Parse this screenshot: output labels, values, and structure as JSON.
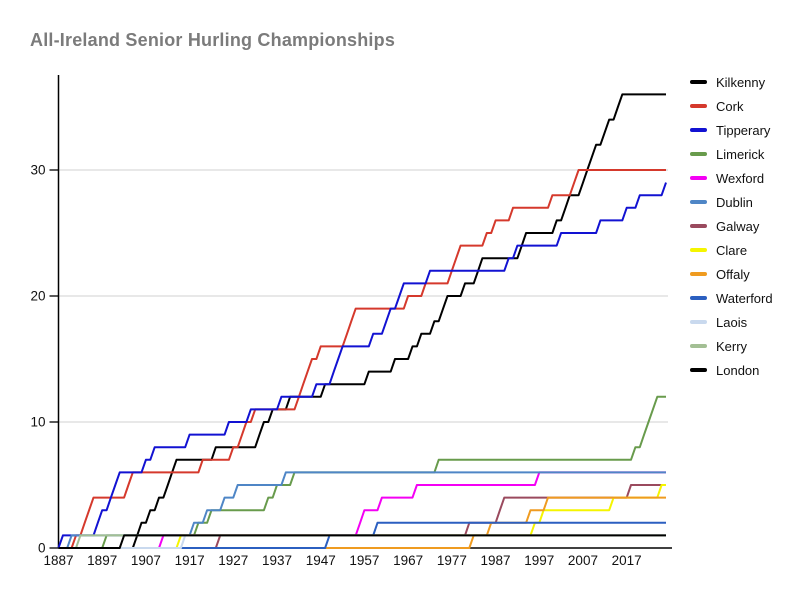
{
  "chart_data": {
    "type": "line",
    "title": "All-Ireland Senior Hurling Championships",
    "x_domain": [
      1887,
      2026
    ],
    "y_domain": [
      0,
      37.5
    ],
    "x_ticks": [
      1887,
      1897,
      1907,
      1917,
      1927,
      1937,
      1947,
      1957,
      1967,
      1977,
      1987,
      1997,
      2007,
      2017
    ],
    "y_ticks": [
      0,
      10,
      20,
      30
    ],
    "y_gridlines": [
      10,
      20,
      30
    ],
    "grid_color": "#d2d2d2",
    "axis_color": "#000000",
    "legend_position": "right",
    "series": [
      {
        "name": "Kilkenny",
        "color": "#000000",
        "total": 36,
        "win_years": [
          1904,
          1905,
          1907,
          1909,
          1911,
          1912,
          1913,
          1922,
          1932,
          1933,
          1935,
          1939,
          1947,
          1957,
          1963,
          1967,
          1969,
          1972,
          1974,
          1975,
          1979,
          1982,
          1983,
          1992,
          1993,
          2000,
          2002,
          2003,
          2006,
          2007,
          2008,
          2009,
          2011,
          2012,
          2014,
          2015
        ]
      },
      {
        "name": "Cork",
        "color": "#d5392c",
        "total": 30,
        "win_years": [
          1890,
          1892,
          1893,
          1894,
          1902,
          1903,
          1919,
          1926,
          1928,
          1929,
          1931,
          1941,
          1942,
          1943,
          1944,
          1946,
          1952,
          1953,
          1954,
          1966,
          1970,
          1976,
          1977,
          1978,
          1984,
          1986,
          1990,
          1999,
          2004,
          2005
        ]
      },
      {
        "name": "Tipperary",
        "color": "#1212d2",
        "total": 29,
        "win_years": [
          1887,
          1895,
          1896,
          1898,
          1899,
          1900,
          1906,
          1908,
          1916,
          1925,
          1930,
          1937,
          1945,
          1949,
          1950,
          1951,
          1958,
          1961,
          1962,
          1964,
          1965,
          1971,
          1989,
          1991,
          2001,
          2010,
          2016,
          2019,
          2025
        ]
      },
      {
        "name": "Limerick",
        "color": "#689b4c",
        "total": 12,
        "win_years": [
          1897,
          1918,
          1921,
          1934,
          1936,
          1940,
          1973,
          2018,
          2020,
          2021,
          2022,
          2023
        ]
      },
      {
        "name": "Wexford",
        "color": "#f400f4",
        "total": 6,
        "win_years": [
          1910,
          1955,
          1956,
          1960,
          1968,
          1996
        ]
      },
      {
        "name": "Dublin",
        "color": "#4f86c6",
        "total": 6,
        "win_years": [
          1889,
          1917,
          1920,
          1924,
          1927,
          1938
        ]
      },
      {
        "name": "Galway",
        "color": "#9a4a5e",
        "total": 5,
        "win_years": [
          1923,
          1980,
          1987,
          1988,
          2017
        ]
      },
      {
        "name": "Clare",
        "color": "#f5f500",
        "total": 5,
        "win_years": [
          1914,
          1995,
          1997,
          2013,
          2024
        ]
      },
      {
        "name": "Offaly",
        "color": "#ef9b20",
        "total": 4,
        "win_years": [
          1981,
          1985,
          1994,
          1998
        ]
      },
      {
        "name": "Waterford",
        "color": "#2b5fc0",
        "total": 2,
        "win_years": [
          1948,
          1959
        ]
      },
      {
        "name": "Laois",
        "color": "#c9d9ee",
        "total": 1,
        "win_years": [
          1915
        ]
      },
      {
        "name": "Kerry",
        "color": "#a3bf94",
        "total": 1,
        "win_years": [
          1891
        ]
      },
      {
        "name": "London",
        "color": "#000000",
        "total": 1,
        "win_years": [
          1901
        ]
      }
    ]
  }
}
